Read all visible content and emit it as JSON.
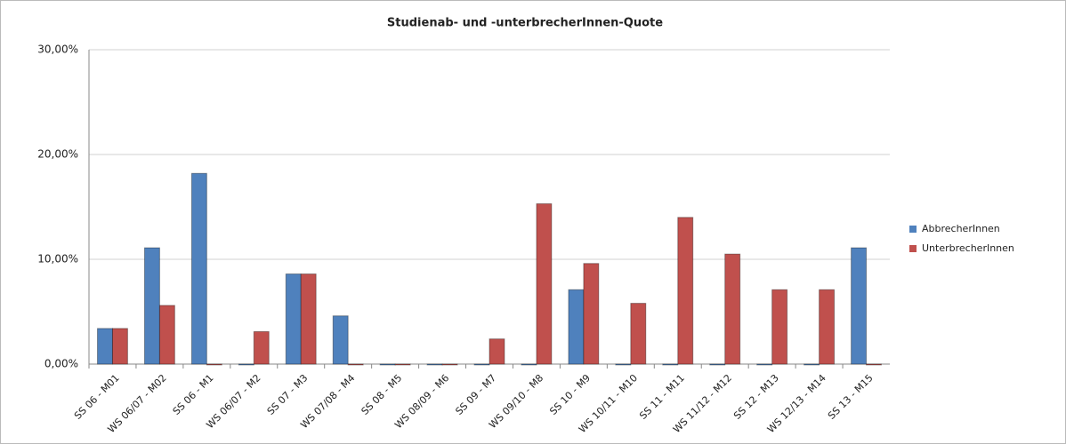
{
  "chart_data": {
    "type": "bar",
    "title": "Studienab- und -unterbrecherInnen-Quote",
    "categories": [
      "SS 06 - M01",
      "WS 06/07 - M02",
      "SS 06 - M1",
      "WS 06/07 - M2",
      "SS 07 - M3",
      "WS 07/08 - M4",
      "SS 08 - M5",
      "WS 08/09 - M6",
      "SS 09 - M7",
      "WS 09/10 - M8",
      "SS 10 - M9",
      "WS 10/11 - M10",
      "SS 11 - M11",
      "WS 11/12 - M12",
      "SS 12 - M13",
      "WS 12/13 - M14",
      "SS 13 - M15"
    ],
    "series": [
      {
        "name": "AbbrecherInnen",
        "color": "#4f81bd",
        "values": [
          3.4,
          11.1,
          18.2,
          0,
          8.6,
          4.6,
          0,
          0,
          0,
          0,
          7.1,
          0,
          0,
          0,
          0,
          0,
          11.1
        ]
      },
      {
        "name": "UnterbrecherInnen",
        "color": "#c0504d",
        "values": [
          3.4,
          5.6,
          0,
          3.1,
          8.6,
          0,
          0,
          0,
          2.4,
          15.3,
          9.6,
          5.8,
          14.0,
          10.5,
          7.1,
          7.1,
          0
        ]
      }
    ],
    "ylim": [
      0,
      30
    ],
    "yticks": [
      {
        "value": 0,
        "label": "0,00%"
      },
      {
        "value": 10,
        "label": "10,00%"
      },
      {
        "value": 20,
        "label": "20,00%"
      },
      {
        "value": 30,
        "label": "30,00%"
      }
    ],
    "grid": true,
    "legend": "right"
  }
}
